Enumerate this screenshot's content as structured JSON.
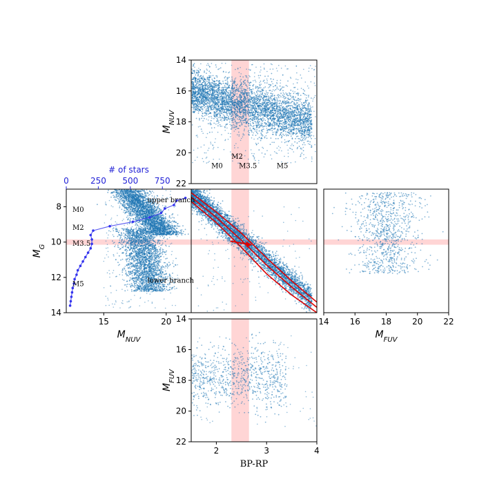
{
  "chart_data": {
    "type": "scatter",
    "title": "",
    "colors": {
      "points": "#1f77b4",
      "band": "#ffb3b3",
      "model": "#dd0000",
      "hist": "#3333ee"
    },
    "band": {
      "bp_rp_range": [
        2.3,
        2.65
      ],
      "mg_range": [
        9.85,
        10.15
      ]
    },
    "panels": [
      {
        "id": "nuv_vs_bprp",
        "xlim": [
          1.5,
          4
        ],
        "ylim": [
          22,
          14
        ],
        "ylabel_main": "M",
        "ylabel_sub": "NUV",
        "yticks": [
          {
            "v": 14,
            "t": "14"
          },
          {
            "v": 16,
            "t": "16"
          },
          {
            "v": 18,
            "t": "18"
          },
          {
            "v": 20,
            "t": "20"
          },
          {
            "v": 22,
            "t": "22"
          }
        ],
        "annotations": [
          {
            "text": "M0",
            "x": 1.9,
            "y": 21.0
          },
          {
            "text": "M2",
            "x": 2.3,
            "y": 20.4
          },
          {
            "text": "M3.5",
            "x": 2.45,
            "y": 21.0
          },
          {
            "text": "M5",
            "x": 3.2,
            "y": 21.0
          }
        ]
      },
      {
        "id": "mg_vs_nuv",
        "xlim": [
          12,
          22
        ],
        "ylim": [
          14,
          7
        ],
        "ylabel_main": "M",
        "ylabel_sub": "G",
        "xlabel_main": "M",
        "xlabel_sub": "NUV",
        "xticks": [
          {
            "v": 15,
            "t": "15"
          },
          {
            "v": 20,
            "t": "20"
          }
        ],
        "yticks": [
          {
            "v": 8,
            "t": "8"
          },
          {
            "v": 10,
            "t": "10"
          },
          {
            "v": 12,
            "t": "12"
          },
          {
            "v": 14,
            "t": "14"
          }
        ],
        "top_axis": {
          "label": "# of stars",
          "lim": [
            0,
            975
          ],
          "ticks": [
            {
              "v": 0,
              "t": "0"
            },
            {
              "v": 250,
              "t": "250"
            },
            {
              "v": 500,
              "t": "500"
            },
            {
              "v": 750,
              "t": "750"
            }
          ]
        },
        "annotations": [
          {
            "text": "upper branch",
            "x": 18.5,
            "y": 7.75
          },
          {
            "text": "M0",
            "x": 12.5,
            "y": 8.3
          },
          {
            "text": "M2",
            "x": 12.5,
            "y": 9.3
          },
          {
            "text": "M3.5",
            "x": 12.5,
            "y": 10.2
          },
          {
            "text": "M5",
            "x": 12.5,
            "y": 12.5
          },
          {
            "text": "lower branch",
            "x": 18.5,
            "y": 12.3
          }
        ],
        "histogram": {
          "mg": [
            7.5,
            7.65,
            7.9,
            8.1,
            8.35,
            8.6,
            8.85,
            9.1,
            9.35,
            9.6,
            9.85,
            10.1,
            10.35,
            10.6,
            10.85,
            11.1,
            11.35,
            11.6,
            11.85,
            12.1,
            12.35,
            12.6,
            12.85,
            13.1,
            13.35,
            13.6
          ],
          "counts": [
            930,
            860,
            840,
            770,
            740,
            650,
            520,
            340,
            210,
            190,
            200,
            200,
            190,
            170,
            150,
            130,
            110,
            90,
            80,
            65,
            60,
            50,
            45,
            40,
            35,
            30
          ]
        }
      },
      {
        "id": "mg_vs_bprp",
        "xlim": [
          1.5,
          4
        ],
        "ylim": [
          14,
          7
        ],
        "model_tracks": [
          [
            [
              1.5,
              7.2
            ],
            [
              2.0,
              8.3
            ],
            [
              2.5,
              9.5
            ],
            [
              3.0,
              10.9
            ],
            [
              3.5,
              12.2
            ],
            [
              4.0,
              13.4
            ]
          ],
          [
            [
              1.5,
              7.45
            ],
            [
              2.0,
              8.6
            ],
            [
              2.5,
              9.9
            ],
            [
              3.0,
              11.3
            ],
            [
              3.5,
              12.55
            ],
            [
              4.0,
              13.7
            ]
          ],
          [
            [
              1.5,
              7.7
            ],
            [
              2.0,
              8.9
            ],
            [
              2.5,
              10.3
            ],
            [
              3.0,
              11.8
            ],
            [
              3.5,
              13.0
            ],
            [
              4.0,
              14.0
            ]
          ]
        ],
        "arrow": {
          "from": [
            2.28,
            9.95
          ],
          "to": [
            2.7,
            10.15
          ]
        }
      },
      {
        "id": "mg_vs_fuv",
        "xlim": [
          14,
          22
        ],
        "ylim": [
          14,
          7
        ],
        "xlabel_main": "M",
        "xlabel_sub": "FUV",
        "xticks": [
          {
            "v": 14,
            "t": "14"
          },
          {
            "v": 16,
            "t": "16"
          },
          {
            "v": 18,
            "t": "18"
          },
          {
            "v": 20,
            "t": "20"
          },
          {
            "v": 22,
            "t": "22"
          }
        ]
      },
      {
        "id": "fuv_vs_bprp",
        "xlim": [
          1.5,
          4
        ],
        "ylim": [
          22,
          14
        ],
        "ylabel_main": "M",
        "ylabel_sub": "FUV",
        "xlabel": "BP-RP",
        "xticks": [
          {
            "v": 2,
            "t": "2"
          },
          {
            "v": 3,
            "t": "3"
          },
          {
            "v": 4,
            "t": "4"
          }
        ],
        "yticks": [
          {
            "v": 14,
            "t": "14"
          },
          {
            "v": 16,
            "t": "16"
          },
          {
            "v": 18,
            "t": "18"
          },
          {
            "v": 20,
            "t": "20"
          },
          {
            "v": 22,
            "t": "22"
          }
        ]
      }
    ]
  }
}
